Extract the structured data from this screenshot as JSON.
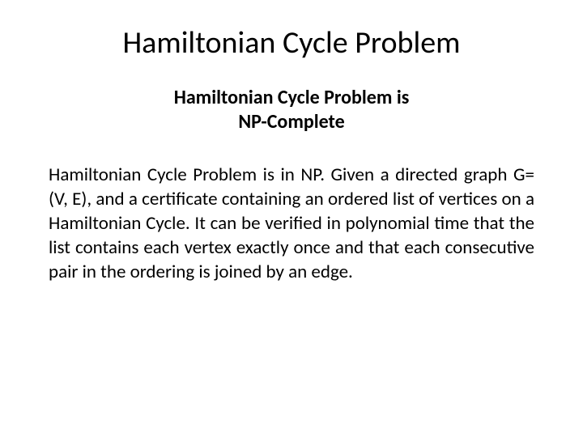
{
  "slide": {
    "title": "Hamiltonian Cycle Problem",
    "subtitle_line1": "Hamiltonian Cycle Problem is",
    "subtitle_line2": "NP-Complete",
    "body": "Hamiltonian Cycle Problem is in NP. Given a directed graph G=(V, E), and a certificate containing an ordered list of vertices on a Hamiltonian Cycle. It can be verified in polynomial time that the list contains each vertex exactly once and that each consecutive pair in the ordering is joined by an edge."
  },
  "colors": {
    "background": "#ffffff",
    "text": "#000000"
  },
  "typography": {
    "title_fontsize": 38,
    "subtitle_fontsize": 24,
    "body_fontsize": 23,
    "font_family": "Calibri"
  }
}
